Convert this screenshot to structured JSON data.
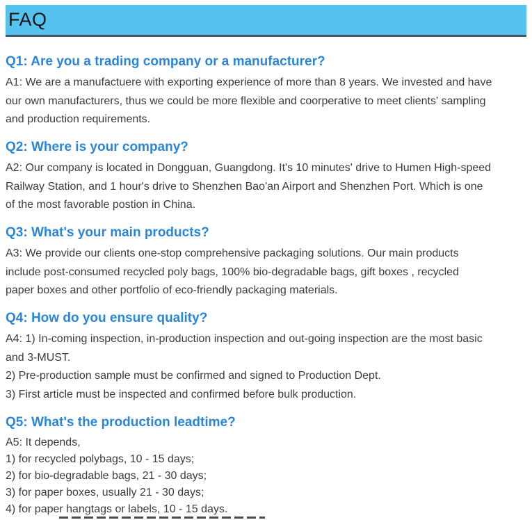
{
  "colors": {
    "header_bg": "#56c2f0",
    "header_border": "#3b586c",
    "question_blue": "#2a86d8",
    "answer_text": "#3b3b3b",
    "header_text": "#151515"
  },
  "faq": {
    "header_label": "FAQ",
    "items": [
      {
        "question": "Q1: Are you a trading company or a manufacturer?",
        "answer_lines": [
          "A1: We are a manufactuere with exporting experience of more than 8 years. We invested and have",
          "our own manufacturers, thus we could be more flexible and coorperative to meet clients' sampling",
          "and production requirements."
        ]
      },
      {
        "question": "Q2: Where is your company?",
        "answer_lines": [
          "A2: Our company is located in Dongguan, Guangdong. It's 10 minutes' drive to Humen High-speed",
          "Railway Station, and 1 hour's drive to Shenzhen Bao'an Airport and Shenzhen Port. Which is one",
          "of the most favorable postion in China."
        ]
      },
      {
        "question": "Q3: What's your main products?",
        "answer_lines": [
          "A3: We provide our clients one-stop comprehensive packaging solutions. Our main products",
          "include post-consumed recycled poly bags, 100% bio-degradable bags, gift boxes , recycled",
          "paper boxes and other portfolio of eco-friendly packaging materials."
        ]
      },
      {
        "question": "Q4: How do you ensure quality?",
        "answer_lines": [
          "A4: 1) In-coming inspection, in-production inspection and out-going inspection are the most basic",
          "and 3-MUST.",
          "2) Pre-production sample must be confirmed and signed to Production Dept.",
          "3) First article must be inspected and confirmed before bulk production."
        ]
      },
      {
        "question": "Q5: What's the production leadtime?",
        "answer_lines": [
          "A5: It depends,",
          "1) for recycled polybags, 10 - 15 days;",
          "2) for bio-degradable bags, 21 - 30 days;",
          "3) for paper boxes, usually 21 - 30 days;",
          "4) for paper hangtags or labels, 10 - 15 days."
        ]
      }
    ]
  }
}
